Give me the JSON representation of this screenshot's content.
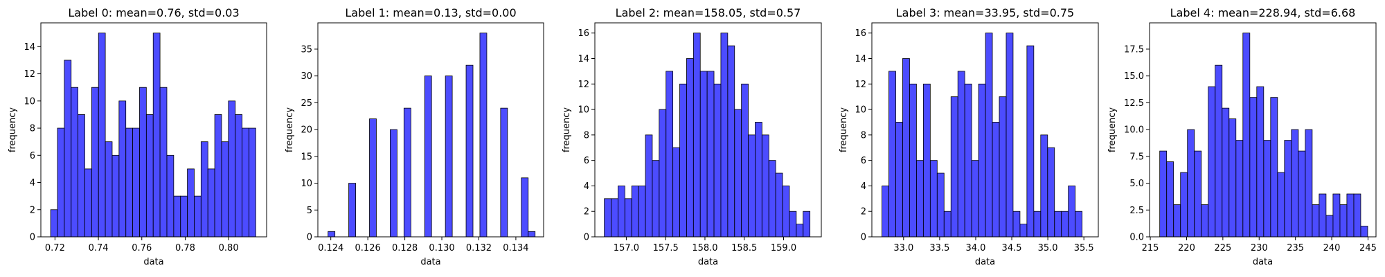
{
  "chart_data": [
    {
      "type": "bar",
      "title": "Label 0: mean=0.76, std=0.03",
      "xlabel": "data",
      "ylabel": "frequency",
      "bin_start": 0.718,
      "bin_width": 0.00315,
      "values": [
        2,
        8,
        13,
        11,
        9,
        5,
        11,
        15,
        7,
        6,
        10,
        8,
        8,
        11,
        9,
        15,
        11,
        6,
        3,
        3,
        5,
        3,
        7,
        5,
        9,
        7,
        10,
        9,
        8,
        8
      ],
      "xlim": [
        0.7135,
        0.8175
      ],
      "ylim": [
        0,
        15.75
      ],
      "xticks": [
        0.72,
        0.74,
        0.76,
        0.78,
        0.8
      ],
      "xtick_labels": [
        "0.72",
        "0.74",
        "0.76",
        "0.78",
        "0.80"
      ],
      "yticks": [
        0,
        2,
        4,
        6,
        8,
        10,
        12,
        14
      ],
      "ytick_labels": [
        "0",
        "2",
        "4",
        "6",
        "8",
        "10",
        "12",
        "14"
      ]
    },
    {
      "type": "bar",
      "title": "Label 1: mean=0.13, std=0.00",
      "xlabel": "data",
      "ylabel": "frequency",
      "bin_start": 0.12385,
      "bin_width": 0.000373,
      "values": [
        1,
        0,
        0,
        10,
        0,
        0,
        22,
        0,
        0,
        20,
        0,
        24,
        0,
        0,
        30,
        0,
        0,
        30,
        0,
        0,
        32,
        0,
        38,
        0,
        0,
        24,
        0,
        0,
        11,
        1
      ],
      "xlim": [
        0.1233,
        0.1355
      ],
      "ylim": [
        0,
        39.9
      ],
      "xticks": [
        0.124,
        0.126,
        0.128,
        0.13,
        0.132,
        0.134
      ],
      "xtick_labels": [
        "0.124",
        "0.126",
        "0.128",
        "0.130",
        "0.132",
        "0.134"
      ],
      "yticks": [
        0,
        5,
        10,
        15,
        20,
        25,
        30,
        35
      ],
      "ytick_labels": [
        "0",
        "5",
        "10",
        "15",
        "20",
        "25",
        "30",
        "35"
      ]
    },
    {
      "type": "bar",
      "title": "Label 2: mean=158.05, std=0.57",
      "xlabel": "data",
      "ylabel": "frequency",
      "bin_start": 156.72,
      "bin_width": 0.0872,
      "values": [
        3,
        3,
        4,
        3,
        4,
        4,
        8,
        6,
        10,
        13,
        7,
        12,
        14,
        16,
        13,
        13,
        12,
        16,
        15,
        10,
        12,
        8,
        9,
        8,
        6,
        5,
        4,
        2,
        1,
        2
      ],
      "xlim": [
        156.6,
        159.48
      ],
      "ylim": [
        0,
        16.8
      ],
      "xticks": [
        157.0,
        157.5,
        158.0,
        158.5,
        159.0
      ],
      "xtick_labels": [
        "157.0",
        "157.5",
        "158.0",
        "158.5",
        "159.0"
      ],
      "yticks": [
        0,
        2,
        4,
        6,
        8,
        10,
        12,
        14,
        16
      ],
      "ytick_labels": [
        "0",
        "2",
        "4",
        "6",
        "8",
        "10",
        "12",
        "14",
        "16"
      ]
    },
    {
      "type": "bar",
      "title": "Label 3: mean=33.95, std=0.75",
      "xlabel": "data",
      "ylabel": "frequency",
      "bin_start": 32.7,
      "bin_width": 0.0957,
      "values": [
        4,
        13,
        9,
        14,
        12,
        6,
        12,
        6,
        5,
        2,
        11,
        13,
        12,
        6,
        12,
        16,
        9,
        11,
        16,
        2,
        1,
        15,
        2,
        8,
        7,
        2,
        2,
        4,
        2
      ],
      "xlim": [
        32.56,
        35.7
      ],
      "ylim": [
        0,
        16.8
      ],
      "xticks": [
        33.0,
        33.5,
        34.0,
        34.5,
        35.0,
        35.5
      ],
      "xtick_labels": [
        "33.0",
        "33.5",
        "34.0",
        "34.5",
        "35.0",
        "35.5"
      ],
      "yticks": [
        0,
        2,
        4,
        6,
        8,
        10,
        12,
        14,
        16
      ],
      "ytick_labels": [
        "0",
        "2",
        "4",
        "6",
        "8",
        "10",
        "12",
        "14",
        "16"
      ]
    },
    {
      "type": "bar",
      "title": "Label 4: mean=228.94, std=6.68",
      "xlabel": "data",
      "ylabel": "frequency",
      "bin_start": 216.3,
      "bin_width": 0.955,
      "values": [
        8,
        7,
        3,
        6,
        10,
        8,
        3,
        14,
        16,
        12,
        11,
        9,
        19,
        13,
        14,
        9,
        13,
        6,
        9,
        10,
        8,
        10,
        3,
        4,
        2,
        4,
        3,
        4,
        4,
        1
      ],
      "xlim": [
        214.9,
        246.1
      ],
      "ylim": [
        0,
        19.95
      ],
      "xticks": [
        215,
        220,
        225,
        230,
        235,
        240,
        245
      ],
      "xtick_labels": [
        "215",
        "220",
        "225",
        "230",
        "235",
        "240",
        "245"
      ],
      "yticks": [
        0,
        2.5,
        5,
        7.5,
        10,
        12.5,
        15,
        17.5
      ],
      "ytick_labels": [
        "0.0",
        "2.5",
        "5.0",
        "7.5",
        "10.0",
        "12.5",
        "15.0",
        "17.5"
      ]
    }
  ]
}
